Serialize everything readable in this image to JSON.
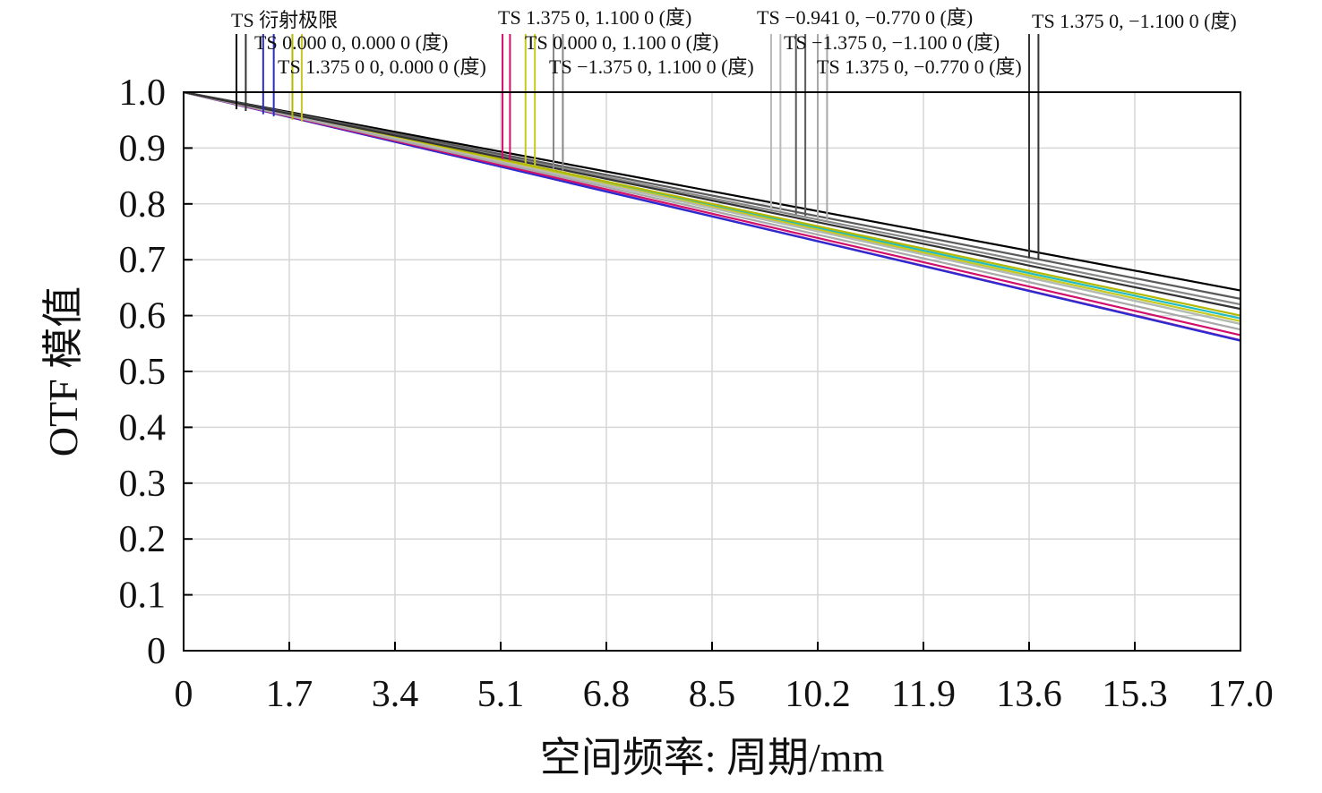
{
  "chart_data": {
    "type": "line",
    "title": "",
    "xlabel": "空间频率: 周期/mm",
    "ylabel": "OTF 模值",
    "xlim": [
      0,
      17.0
    ],
    "ylim": [
      0,
      1.0
    ],
    "x_ticks": [
      0,
      1.7,
      3.4,
      5.1,
      6.8,
      8.5,
      10.2,
      11.9,
      13.6,
      15.3,
      17.0
    ],
    "x_tick_labels": [
      "0",
      "1.7",
      "3.4",
      "5.1",
      "6.8",
      "8.5",
      "10.2",
      "11.9",
      "13.6",
      "15.3",
      "17.0"
    ],
    "y_ticks": [
      0,
      0.1,
      0.2,
      0.3,
      0.4,
      0.5,
      0.6,
      0.7,
      0.8,
      0.9,
      1.0
    ],
    "y_tick_labels": [
      "0",
      "0.1",
      "0.2",
      "0.3",
      "0.4",
      "0.5",
      "0.6",
      "0.7",
      "0.8",
      "0.9",
      "1.0"
    ],
    "grid": true,
    "legend_placement": "top, labels above plot with leader lines",
    "series": [
      {
        "name": "TS 衍射极限",
        "color": "#000000",
        "x": [
          0,
          17.0
        ],
        "y": [
          1.0,
          0.645
        ]
      },
      {
        "name": "TS 0.000 0, 0.000 0 (度)",
        "color": "#2b2bd0",
        "x": [
          0,
          17.0
        ],
        "y": [
          1.0,
          0.555
        ]
      },
      {
        "name": "TS 1.375 0 0, 0.000 0 (度)",
        "color": "#b5b800",
        "x": [
          0,
          17.0
        ],
        "y": [
          1.0,
          0.6
        ]
      },
      {
        "name": "TS 1.375 0, 1.100 0 (度)",
        "color": "#d0106a",
        "x": [
          0,
          17.0
        ],
        "y": [
          1.0,
          0.565
        ]
      },
      {
        "name": "TS 0.000 0, 1.100 0 (度)",
        "color": "#c8c820",
        "x": [
          0,
          17.0
        ],
        "y": [
          1.0,
          0.59
        ]
      },
      {
        "name": "TS −1.375 0, 1.100 0 (度)",
        "color": "#888888",
        "x": [
          0,
          17.0
        ],
        "y": [
          1.0,
          0.62
        ]
      },
      {
        "name": "TS −0.941 0, −0.770 0 (度)",
        "color": "#b8b8b8",
        "x": [
          0,
          17.0
        ],
        "y": [
          1.0,
          0.585
        ]
      },
      {
        "name": "TS −1.375 0, −1.100 0 (度)",
        "color": "#5a5a5a",
        "x": [
          0,
          17.0
        ],
        "y": [
          1.0,
          0.63
        ]
      },
      {
        "name": "TS 1.375 0, −0.770 0 (度)",
        "color": "#a8a8a8",
        "x": [
          0,
          17.0
        ],
        "y": [
          1.0,
          0.575
        ]
      },
      {
        "name": "TS 1.375 0, −1.100 0 (度)",
        "color": "#333333",
        "x": [
          0,
          17.0
        ],
        "y": [
          1.0,
          0.612
        ]
      }
    ],
    "extra_curves": [
      {
        "color": "#1fbcc4",
        "x": [
          0,
          17.0
        ],
        "y": [
          1.0,
          0.595
        ]
      },
      {
        "color": "#38d838",
        "x": [
          0,
          17.0
        ],
        "y": [
          1.0,
          0.585
        ]
      },
      {
        "color": "#9a1ea8",
        "x": [
          0,
          17.0
        ],
        "y": [
          1.0,
          0.556
        ]
      }
    ],
    "legend_labels": [
      "TS 衍射极限",
      "TS 0.000 0, 0.000 0 (度)",
      "TS 1.375 0 0, 0.000 0 (度)",
      "TS 1.375 0, 1.100 0 (度)",
      "TS 0.000 0, 1.100 0 (度)",
      "TS −1.375 0, 1.100 0 (度)",
      "TS −0.941 0, −0.770 0 (度)",
      "TS −1.375 0, −1.100 0 (度)",
      "TS 1.375 0, −0.770 0 (度)",
      "TS 1.375 0, −1.100 0 (度)"
    ],
    "markers": [
      {
        "x": 0.85,
        "color": "#000000"
      },
      {
        "x": 1.0,
        "color": "#333333"
      },
      {
        "x": 1.28,
        "color": "#2b2bd0"
      },
      {
        "x": 1.45,
        "color": "#2b2bd0"
      },
      {
        "x": 1.75,
        "color": "#b5b800"
      },
      {
        "x": 1.9,
        "color": "#c8c820"
      },
      {
        "x": 5.13,
        "color": "#d0106a"
      },
      {
        "x": 5.25,
        "color": "#d0106a"
      },
      {
        "x": 5.5,
        "color": "#c8c820"
      },
      {
        "x": 5.65,
        "color": "#c8c820"
      },
      {
        "x": 5.95,
        "color": "#888888"
      },
      {
        "x": 6.1,
        "color": "#888888"
      },
      {
        "x": 9.45,
        "color": "#b8b8b8"
      },
      {
        "x": 9.6,
        "color": "#b8b8b8"
      },
      {
        "x": 9.85,
        "color": "#5a5a5a"
      },
      {
        "x": 10.0,
        "color": "#5a5a5a"
      },
      {
        "x": 10.2,
        "color": "#a8a8a8"
      },
      {
        "x": 10.35,
        "color": "#a8a8a8"
      },
      {
        "x": 13.6,
        "color": "#333333"
      },
      {
        "x": 13.75,
        "color": "#333333"
      }
    ]
  }
}
